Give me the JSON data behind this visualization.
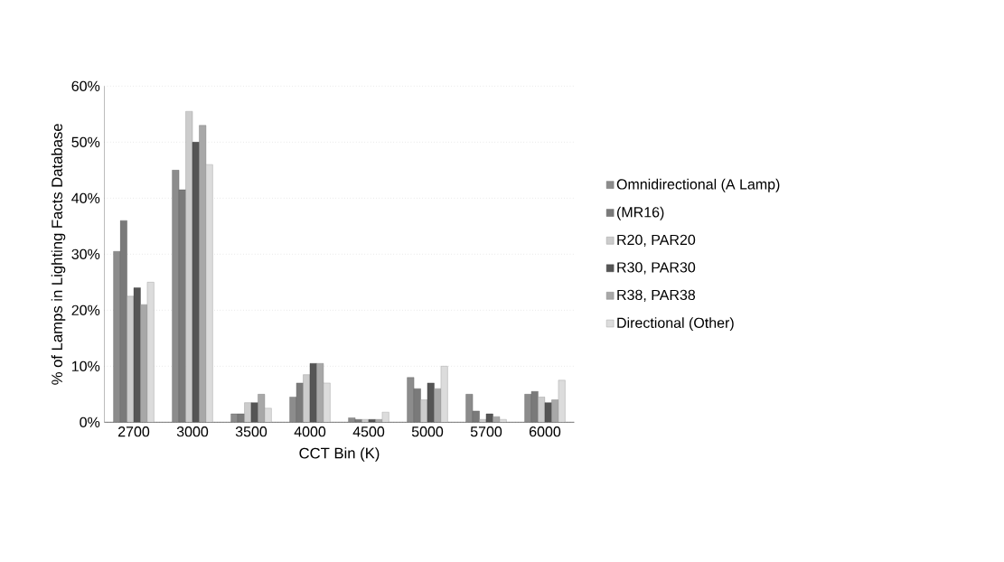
{
  "chart_data": {
    "type": "bar",
    "xlabel": "CCT Bin (K)",
    "ylabel": "% of Lamps in Lighting Facts Database",
    "categories": [
      "2700",
      "3000",
      "3500",
      "4000",
      "4500",
      "5000",
      "5700",
      "6000"
    ],
    "series": [
      {
        "name": "Omnidirectional (A Lamp)",
        "color": "#8c8c8c",
        "values": [
          30.5,
          45,
          1.5,
          4.5,
          0.8,
          8,
          5,
          5
        ]
      },
      {
        "name": "(MR16)",
        "color": "#7a7a7a",
        "values": [
          36,
          41.5,
          1.5,
          7,
          0.5,
          6,
          2,
          5.5
        ]
      },
      {
        "name": "R20, PAR20",
        "color": "#cccccc",
        "values": [
          22.5,
          55.5,
          3.5,
          8.5,
          0.5,
          4,
          0.5,
          4.5
        ]
      },
      {
        "name": "R30, PAR30",
        "color": "#555555",
        "values": [
          24,
          50,
          3.5,
          10.5,
          0.5,
          7,
          1.5,
          3.5
        ]
      },
      {
        "name": "R38, PAR38",
        "color": "#a8a8a8",
        "values": [
          21,
          53,
          5,
          10.5,
          0.5,
          6,
          1,
          4
        ]
      },
      {
        "name": "Directional (Other)",
        "color": "#dcdcdc",
        "values": [
          25,
          46,
          2.5,
          7,
          1.8,
          10,
          0.5,
          7.5
        ]
      }
    ],
    "ylim": [
      0,
      60
    ],
    "yticks": [
      {
        "value": 0,
        "label": "0%"
      },
      {
        "value": 10,
        "label": "10%"
      },
      {
        "value": 20,
        "label": "20%"
      },
      {
        "value": 30,
        "label": "30%"
      },
      {
        "value": 40,
        "label": "40%"
      },
      {
        "value": 50,
        "label": "50%"
      },
      {
        "value": 60,
        "label": "60%"
      }
    ],
    "grid": "y",
    "legend": "right"
  }
}
